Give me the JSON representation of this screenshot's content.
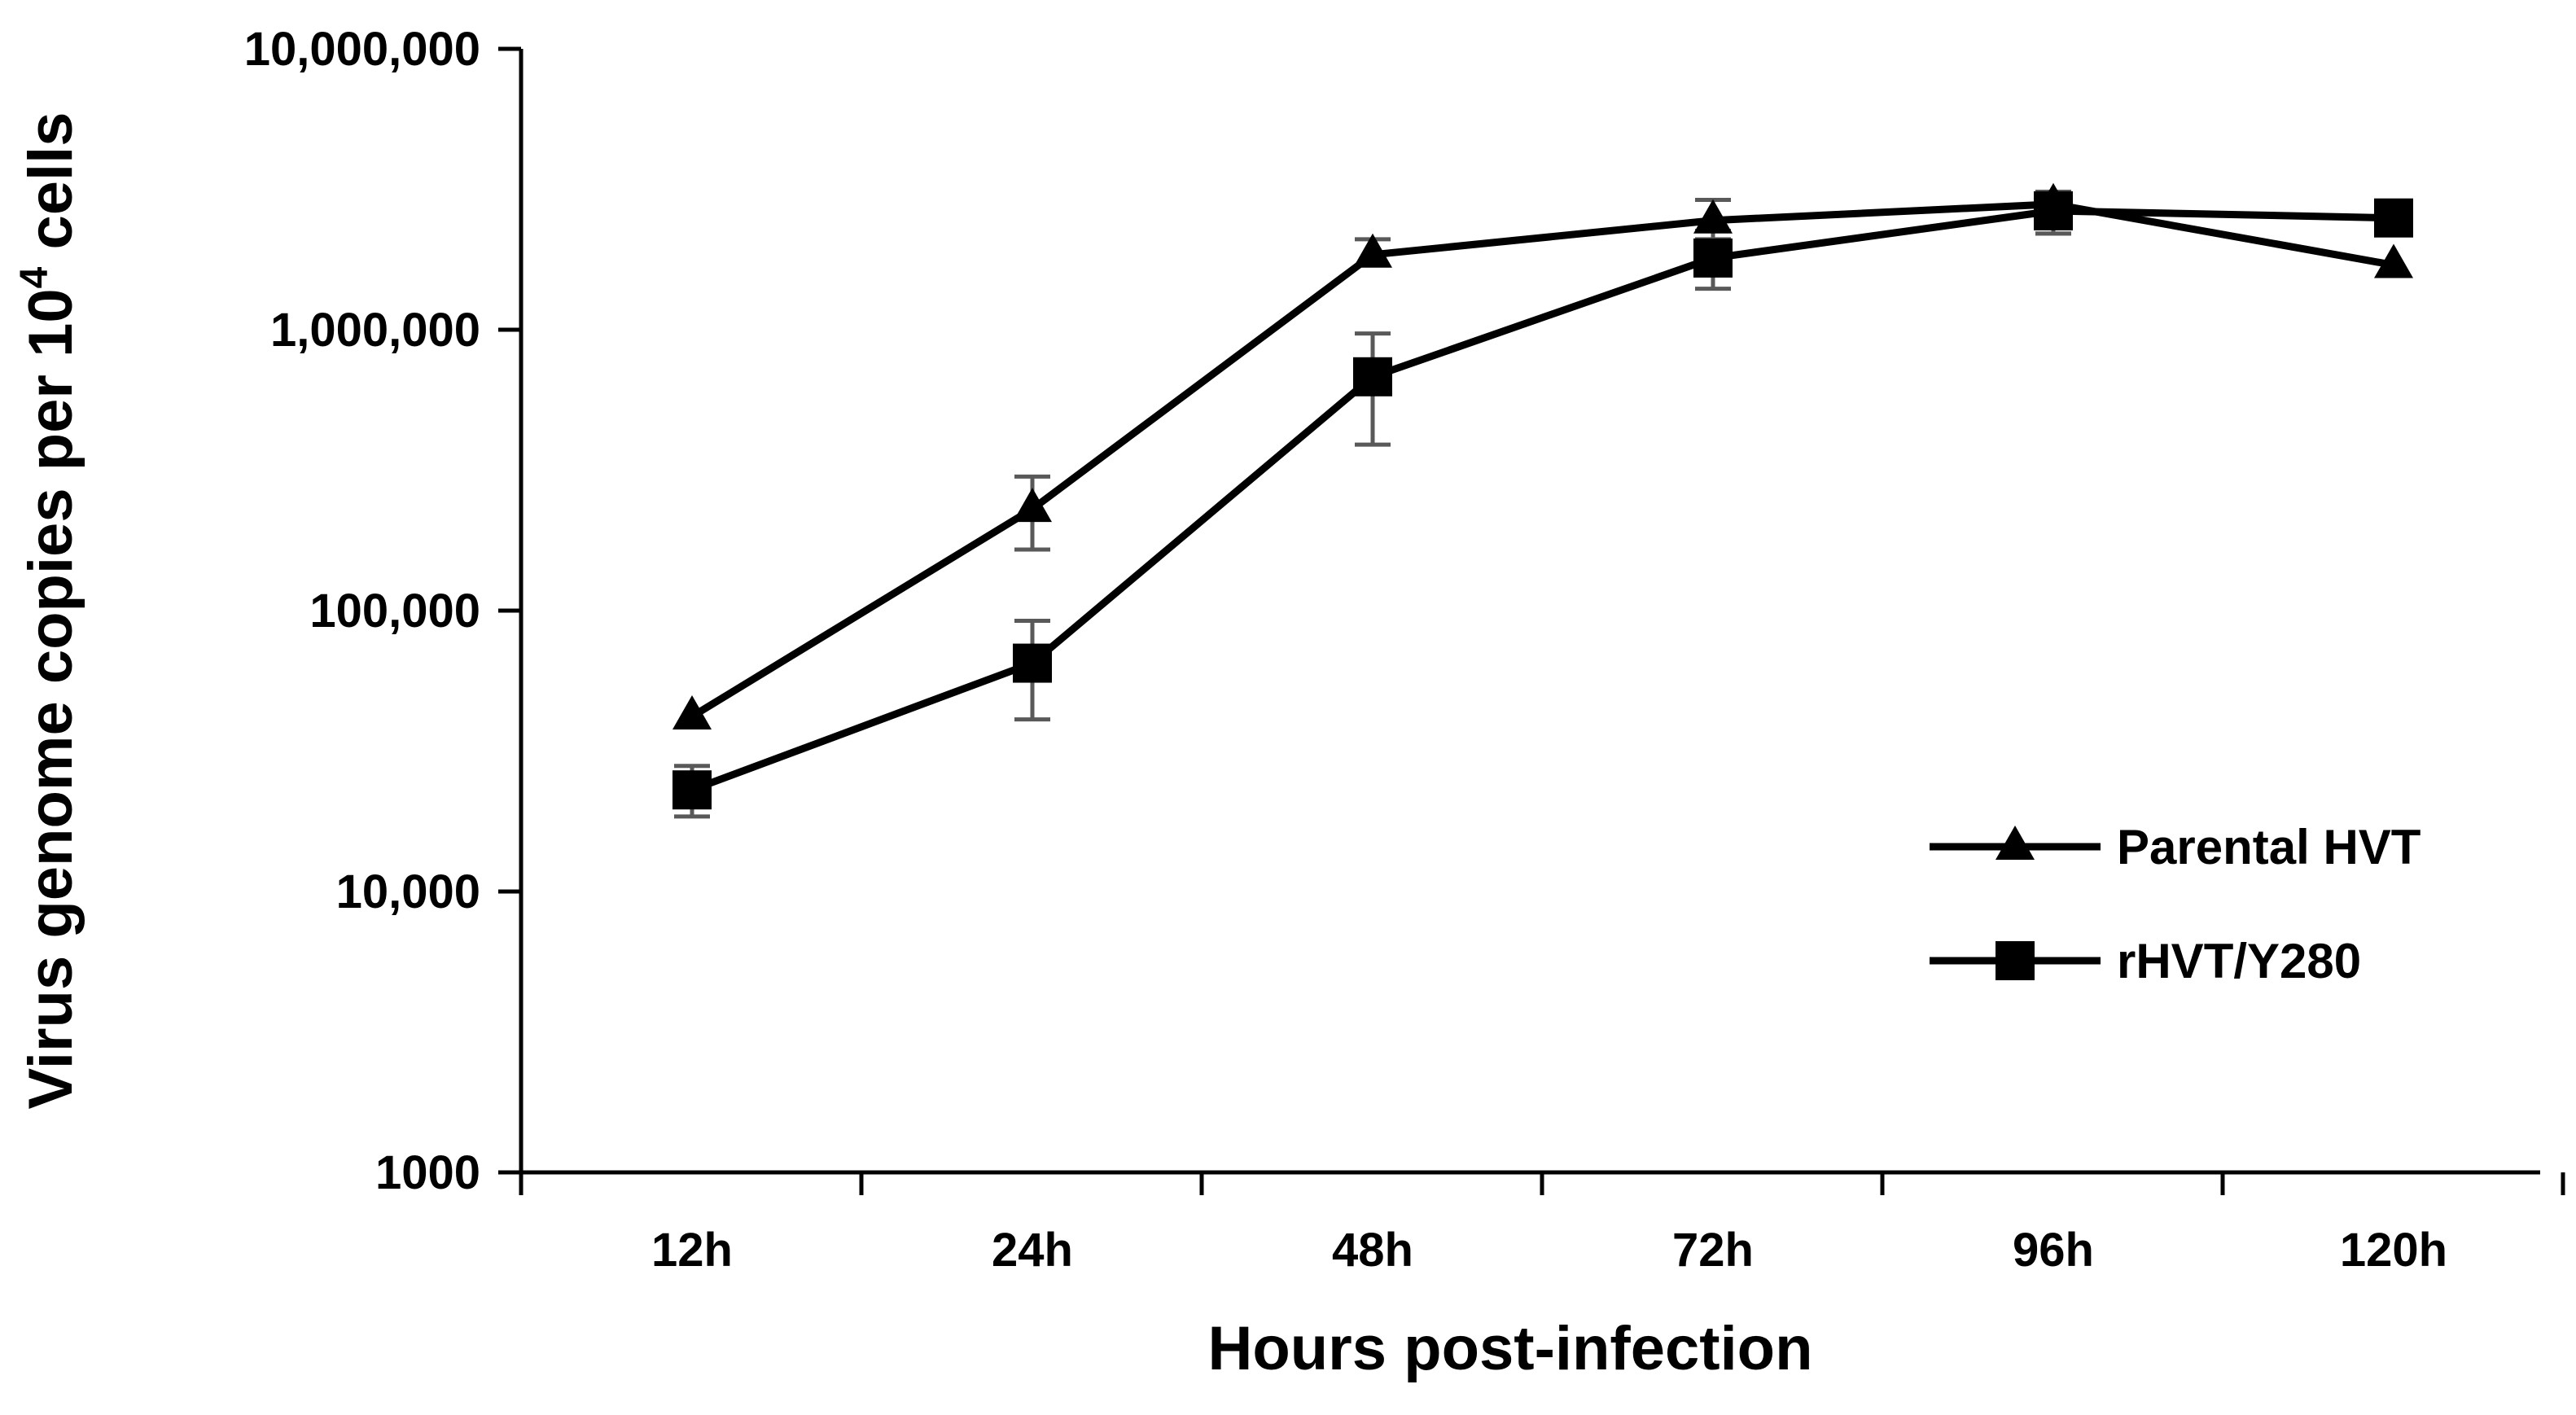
{
  "chart_data": {
    "type": "line",
    "title": "",
    "xlabel": "Hours post-infection",
    "ylabel": {
      "text": "Virus genome copies per 10",
      "superscript": "4",
      "suffix": " cells"
    },
    "yscale": "log",
    "ylim": [
      1000,
      10000000
    ],
    "yticks": [
      1000,
      10000,
      100000,
      1000000,
      10000000
    ],
    "ytick_labels": [
      "1000",
      "10,000",
      "100,000",
      "1,000,000",
      "10,000,000"
    ],
    "categories": [
      "12h",
      "24h",
      "48h",
      "72h",
      "96h",
      "120h"
    ],
    "legend_position": "right-middle",
    "grid": false,
    "series": [
      {
        "name": "Parental HVT",
        "marker": "triangle",
        "color": "#000000",
        "values": [
          42000,
          230000,
          1850000,
          2450000,
          2800000,
          1700000
        ],
        "err_low": [
          null,
          165000,
          null,
          2100000,
          2200000,
          null
        ],
        "err_high": [
          null,
          300000,
          2100000,
          2900000,
          3100000,
          null
        ]
      },
      {
        "name": "rHVT/Y280",
        "marker": "square",
        "color": "#000000",
        "values": [
          23000,
          65000,
          680000,
          1800000,
          2650000,
          2500000
        ],
        "err_low": [
          18500,
          41000,
          390000,
          1400000,
          2200000,
          null
        ],
        "err_high": [
          28000,
          92000,
          970000,
          2250000,
          3050000,
          null
        ]
      }
    ],
    "error_bar_color": "#595959"
  }
}
